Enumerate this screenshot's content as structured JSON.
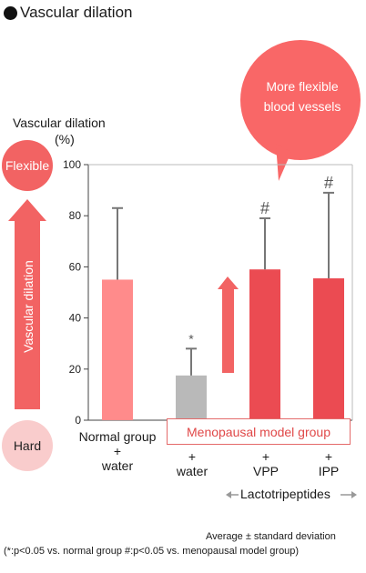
{
  "title": "Vascular dilation",
  "ylabel_line1": "Vascular dilation",
  "ylabel_unit": "(%)",
  "side_label": "Vascular dilation",
  "flexible_label": "Flexible",
  "hard_label": "Hard",
  "bubble_line1": "More flexible",
  "bubble_line2": "blood vessels",
  "menopausal_label": "Menopausal model group",
  "lacto_label": "Lactotripeptides",
  "footnote_line1": "Average ± standard deviation",
  "footnote_line2": "(*:p<0.05 vs. normal group #:p<0.05 vs. menopausal model group)",
  "colors": {
    "normal": "#ff8b8b",
    "water": "#b9b9b9",
    "treatment": "#eb4b52",
    "arrow": "#f26363",
    "error": "#777777"
  },
  "chart_data": {
    "type": "bar",
    "ylabel": "Vascular dilation (%)",
    "ylim": [
      0,
      100
    ],
    "yticks": [
      0,
      20,
      40,
      60,
      80,
      100
    ],
    "categories": [
      {
        "line1": "Normal group",
        "line2": "+",
        "line3": "water"
      },
      {
        "line1": "",
        "line2": "+",
        "line3": "water"
      },
      {
        "line1": "",
        "line2": "+",
        "line3": "VPP"
      },
      {
        "line1": "",
        "line2": "+",
        "line3": "IPP"
      }
    ],
    "values": [
      55,
      17.5,
      59,
      55.5
    ],
    "error_upper": [
      83,
      28,
      79,
      89
    ],
    "annotations": [
      "",
      "*",
      "#",
      "#"
    ],
    "bar_colors": [
      "#ff8b8b",
      "#b9b9b9",
      "#eb4b52",
      "#eb4b52"
    ]
  }
}
